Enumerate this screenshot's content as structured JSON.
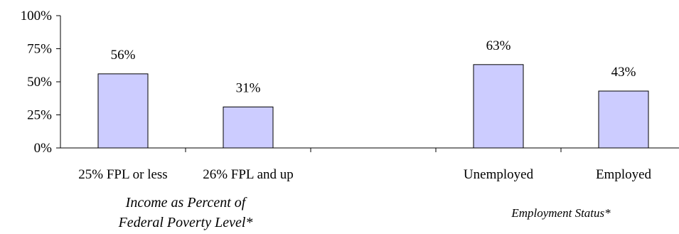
{
  "chart_data": {
    "type": "bar",
    "y_ticks": [
      "0%",
      "25%",
      "50%",
      "75%",
      "100%"
    ],
    "ylim": [
      0,
      100
    ],
    "grid": false,
    "legend": "none",
    "bar_color": "#ccccff",
    "slots": [
      {
        "category": "25% FPL or less",
        "value": 56,
        "label": "56%"
      },
      {
        "category": "26% FPL and up",
        "value": 31,
        "label": "31%"
      },
      {
        "category": "",
        "value": null,
        "label": ""
      },
      {
        "category": "Unemployed",
        "value": 63,
        "label": "63%"
      },
      {
        "category": "Employed",
        "value": 43,
        "label": "43%"
      }
    ],
    "groups": [
      {
        "title_lines": [
          "Income as Percent of",
          "Federal Poverty Level*"
        ],
        "slots": [
          0,
          1
        ]
      },
      {
        "title_lines": [
          "Employment Status*"
        ],
        "slots": [
          3,
          4
        ]
      }
    ]
  }
}
